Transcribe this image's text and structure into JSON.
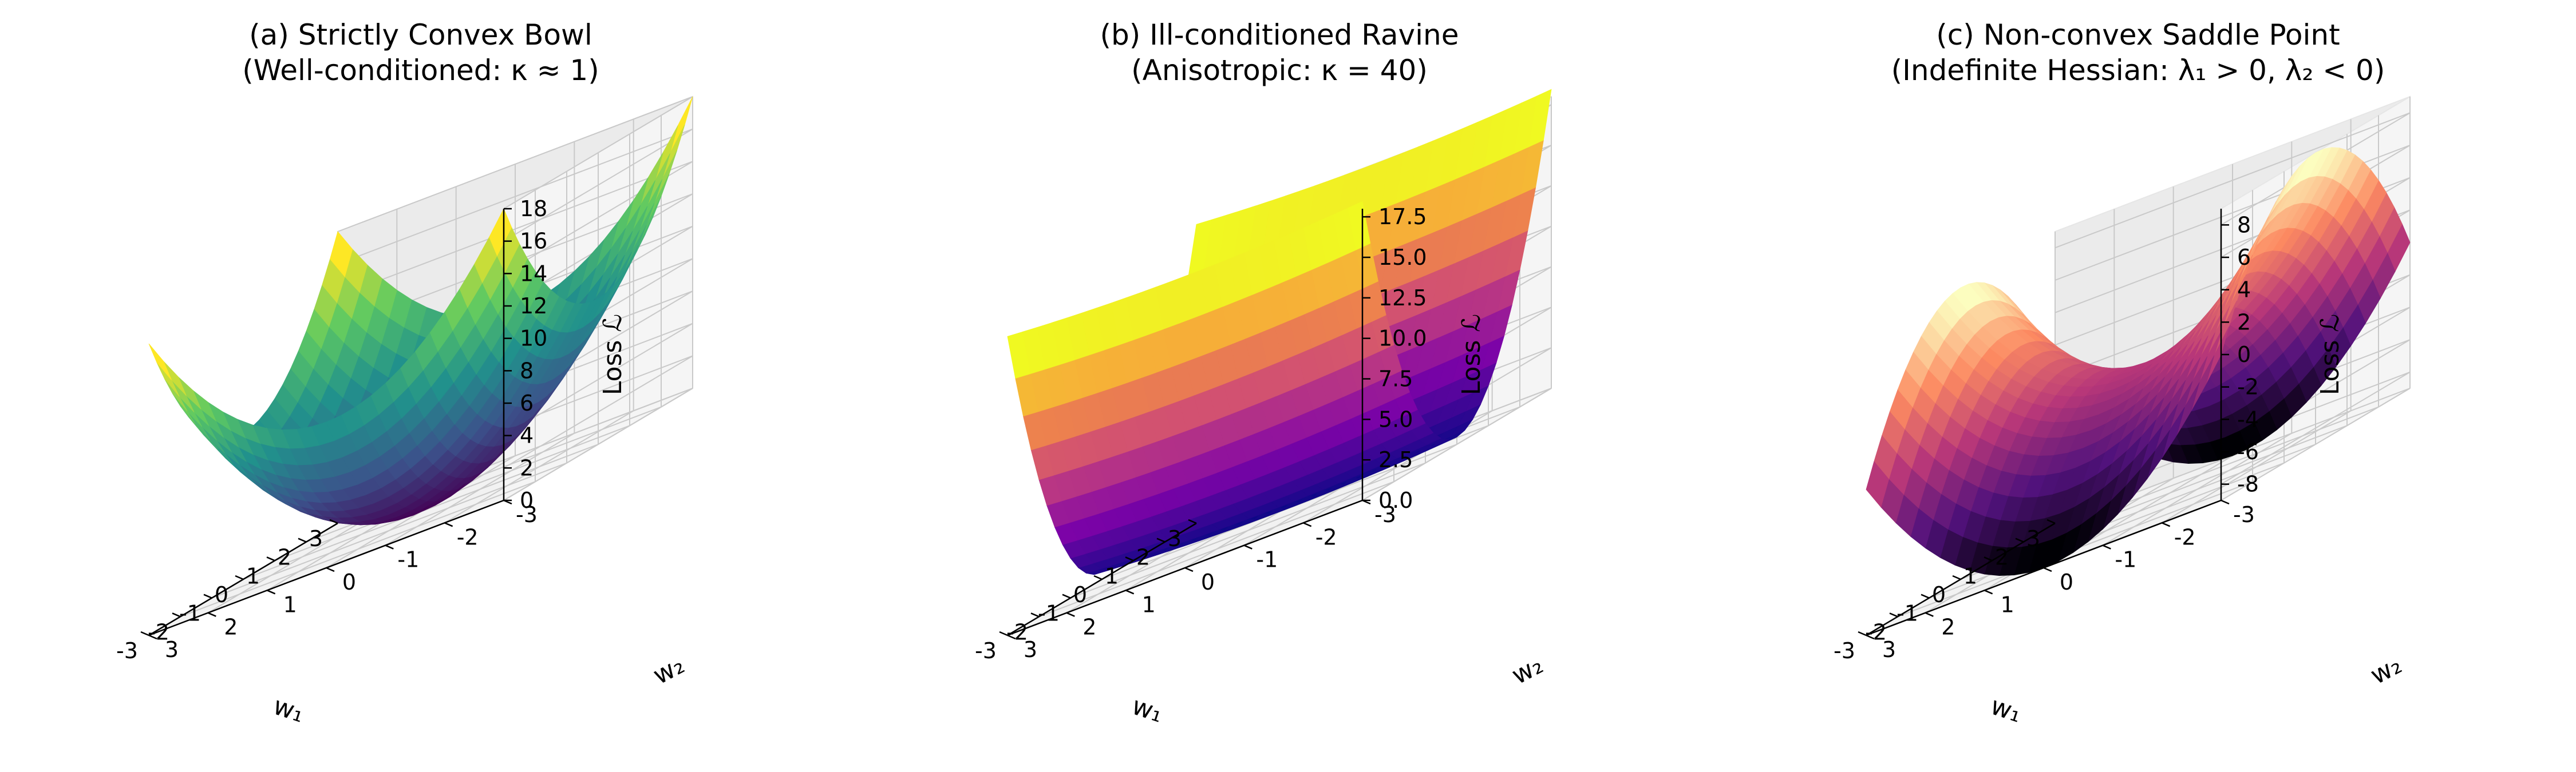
{
  "chart_data": [
    {
      "type": "surface",
      "surface": "bowl",
      "colormap": "viridis",
      "title_line1": "(a) Strictly Convex Bowl",
      "title_line2": "(Well-conditioned: κ ≈ 1)",
      "xlabel": "w₁",
      "ylabel": "w₂",
      "zlabel": "Loss ℒ",
      "x_ticks": [
        "3",
        "2",
        "1",
        "0",
        "-1",
        "-2",
        "-3"
      ],
      "y_ticks": [
        "3",
        "2",
        "1",
        "0",
        "-1",
        "-2",
        "-3"
      ],
      "z_ticks": [
        "0",
        "2",
        "4",
        "6",
        "8",
        "10",
        "12",
        "14",
        "16",
        "18"
      ],
      "x_range": [
        -3,
        3
      ],
      "y_range": [
        -3,
        3
      ],
      "z_range": [
        0,
        18
      ],
      "formula": "w1^2 + w2^2"
    },
    {
      "type": "surface",
      "surface": "ravine",
      "colormap": "plasma",
      "title_line1": "(b) Ill-conditioned Ravine",
      "title_line2": "(Anisotropic: κ = 40)",
      "xlabel": "w₁",
      "ylabel": "w₂",
      "zlabel": "Loss ℒ",
      "x_ticks": [
        "3",
        "2",
        "1",
        "0",
        "-1",
        "-2",
        "-3"
      ],
      "y_ticks": [
        "3",
        "2",
        "1",
        "0",
        "-1",
        "-2",
        "-3"
      ],
      "z_ticks": [
        "0.0",
        "2.5",
        "5.0",
        "7.5",
        "10.0",
        "12.5",
        "15.0",
        "17.5"
      ],
      "x_range": [
        -3,
        3
      ],
      "y_range": [
        -3,
        3
      ],
      "z_range": [
        0,
        18
      ],
      "formula": "0.05*w1^2 + 2*w2^2"
    },
    {
      "type": "surface",
      "surface": "saddle",
      "colormap": "magma",
      "title_line1": "(c) Non-convex Saddle Point",
      "title_line2": "(Indefinite Hessian: λ₁ > 0, λ₂ < 0)",
      "xlabel": "w₁",
      "ylabel": "w₂",
      "zlabel": "Loss ℒ",
      "x_ticks": [
        "3",
        "2",
        "1",
        "0",
        "-1",
        "-2",
        "-3"
      ],
      "y_ticks": [
        "3",
        "2",
        "1",
        "0",
        "-1",
        "-2",
        "-3"
      ],
      "z_ticks": [
        "-8",
        "-6",
        "-4",
        "-2",
        "0",
        "2",
        "4",
        "6",
        "8"
      ],
      "x_range": [
        -3,
        3
      ],
      "y_range": [
        -3,
        3
      ],
      "z_range": [
        -9,
        9
      ],
      "formula": "w1^2 - w2^2"
    }
  ]
}
